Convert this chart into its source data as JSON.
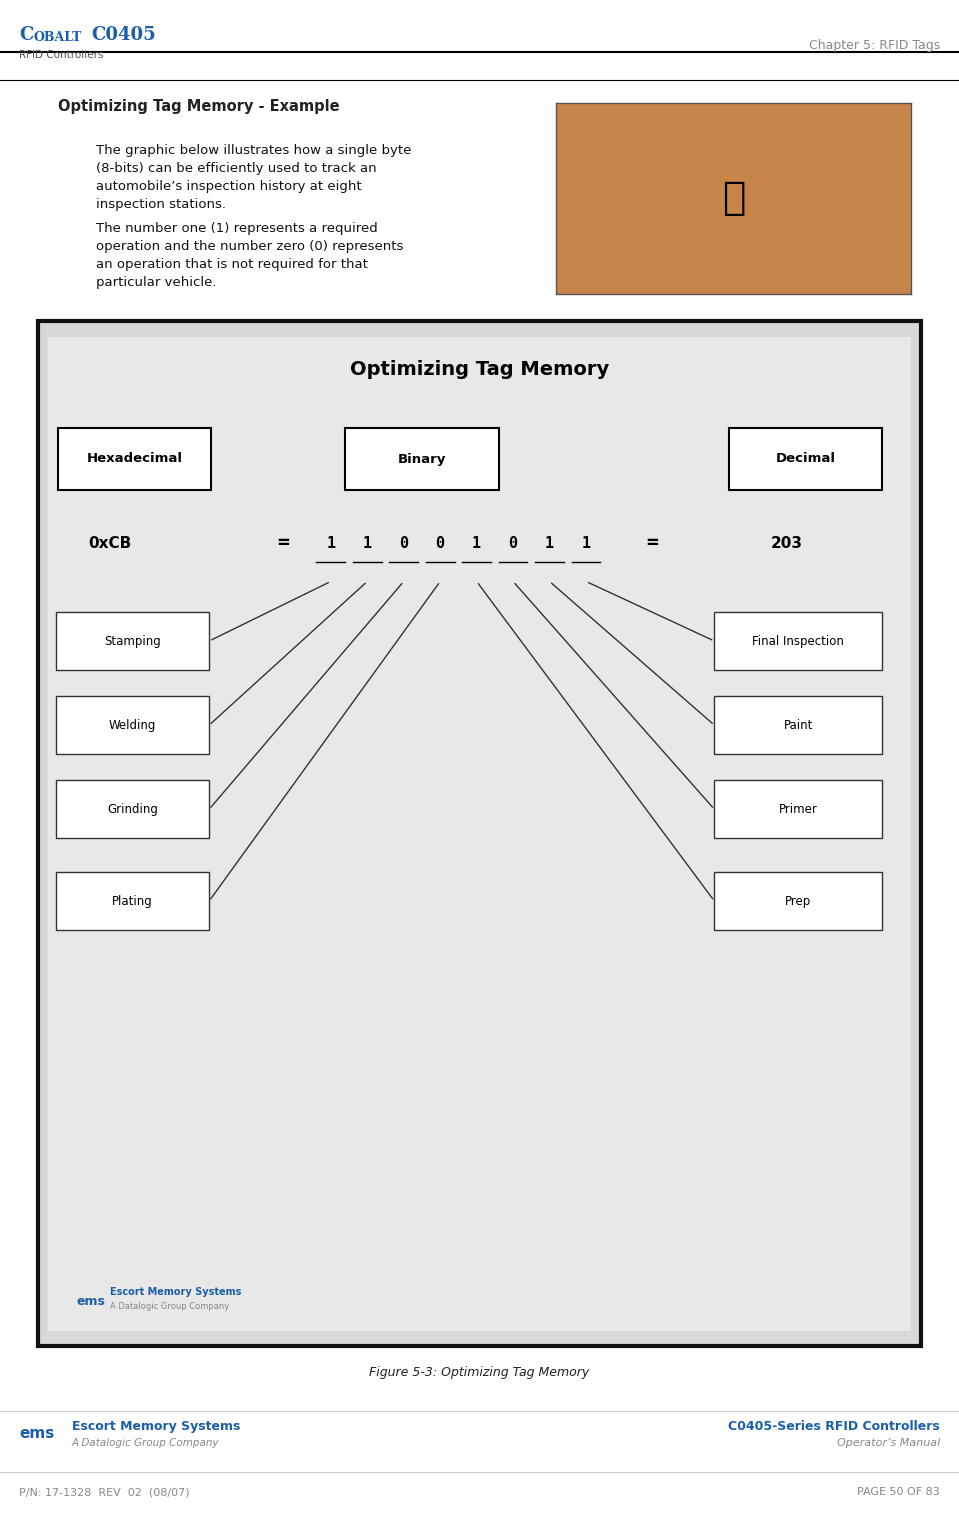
{
  "page_width": 9.59,
  "page_height": 15.3,
  "bg_color": "#ffffff",
  "header": {
    "left_title": "Cobalt C0405",
    "left_subtitle": "RFID Controllers",
    "right_text": "Chapter 5: RFID Tags",
    "title_color": "#1a5fa8",
    "subtitle_color": "#555555",
    "right_color": "#888888",
    "border_color": "#000000"
  },
  "section_title": "Optimizing Tag Memory - Example",
  "body_text1": "The graphic below illustrates how a single byte\n(8-bits) can be efficiently used to track an\nautomobile’s inspection history at eight\ninspection stations.",
  "body_text2": "The number one (1) represents a required\noperation and the number zero (0) represents\nan operation that is not required for that\nparticular vehicle.",
  "diagram_title": "Optimizing Tag Memory",
  "hex_label": "Hexadecimal",
  "binary_label": "Binary",
  "decimal_label": "Decimal",
  "hex_value": "0xCB",
  "binary_values": [
    "1",
    "1",
    "0",
    "0",
    "1",
    "0",
    "1",
    "1"
  ],
  "decimal_value": "203",
  "equals_sign": "=",
  "stations_left": [
    "Stamping",
    "Welding",
    "Grinding",
    "Plating"
  ],
  "stations_right": [
    "Final Inspection",
    "Paint",
    "Primer",
    "Prep"
  ],
  "diagram_bg": "#e8e8e8",
  "diagram_border": "#222222",
  "box_color": "#ffffff",
  "box_border": "#000000",
  "binary_color": "#000000",
  "title_diagram_color": "#000000",
  "figure_caption": "Figure 5-3: Optimizing Tag Memory",
  "footer_left_title": "Escort Memory Systems",
  "footer_left_sub": "A Datalogic Group Company",
  "footer_left_brand": "ems",
  "footer_right_title": "C0405-Series RFID Controllers",
  "footer_right_sub": "Operator’s Manual",
  "footer_bottom_left": "P/N: 17-1328  REV  02  (08/07)",
  "footer_bottom_right": "PAGE 50 OF 83",
  "footer_color": "#1a5fa8",
  "footer_gray": "#888888"
}
